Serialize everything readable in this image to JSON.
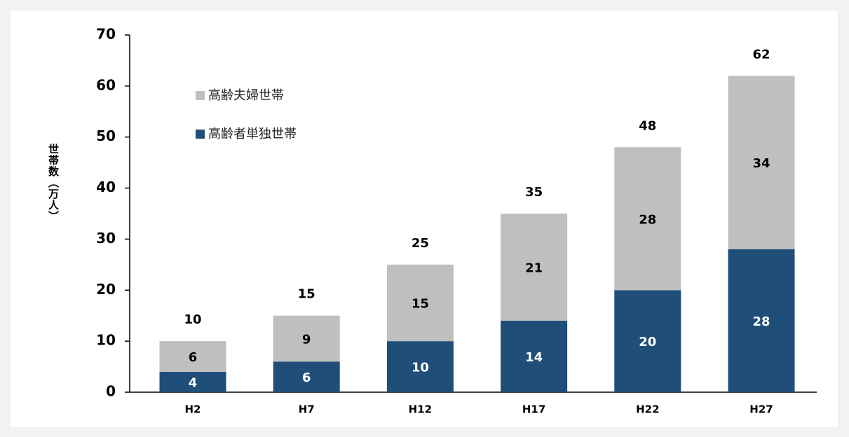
{
  "chart_data": {
    "type": "stacked_bar",
    "y_label": "世帯数（万人）",
    "categories": [
      "H2",
      "H7",
      "H12",
      "H17",
      "H22",
      "H27"
    ],
    "series": [
      {
        "name": "高齢者単独世帯",
        "color": "#1f4e79",
        "values": [
          4,
          6,
          10,
          14,
          20,
          28
        ]
      },
      {
        "name": "高齢夫婦世帯",
        "color": "#bfbfbf",
        "values": [
          6,
          9,
          15,
          21,
          28,
          34
        ]
      }
    ],
    "totals": [
      10,
      15,
      25,
      35,
      48,
      62
    ],
    "ylim": [
      0,
      70
    ],
    "yticks": [
      0,
      10,
      20,
      30,
      40,
      50,
      60,
      70
    ]
  }
}
